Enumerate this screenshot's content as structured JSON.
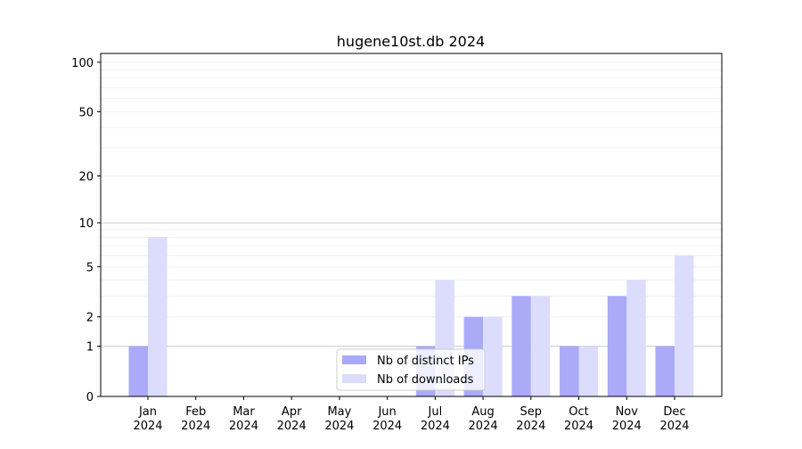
{
  "chart_data": {
    "type": "bar",
    "title": "hugene10st.db 2024",
    "xlabel": "",
    "ylabel": "",
    "yscale": "log1p",
    "ylim": [
      0,
      113
    ],
    "yticks": [
      0,
      1,
      2,
      5,
      10,
      20,
      50,
      100
    ],
    "grid": true,
    "legend_position": "bottom-center",
    "categories": [
      "Jan\n2024",
      "Feb\n2024",
      "Mar\n2024",
      "Apr\n2024",
      "May\n2024",
      "Jun\n2024",
      "Jul\n2024",
      "Aug\n2024",
      "Sep\n2024",
      "Oct\n2024",
      "Nov\n2024",
      "Dec\n2024"
    ],
    "series": [
      {
        "name": "Nb of distinct IPs",
        "color": "#aaaaf8",
        "values": [
          1,
          0,
          0,
          0,
          0,
          0,
          1,
          2,
          3,
          1,
          3,
          1
        ]
      },
      {
        "name": "Nb of downloads",
        "color": "#dcdcfc",
        "values": [
          8,
          0,
          0,
          0,
          0,
          0,
          4,
          2,
          3,
          1,
          4,
          6
        ]
      }
    ]
  }
}
